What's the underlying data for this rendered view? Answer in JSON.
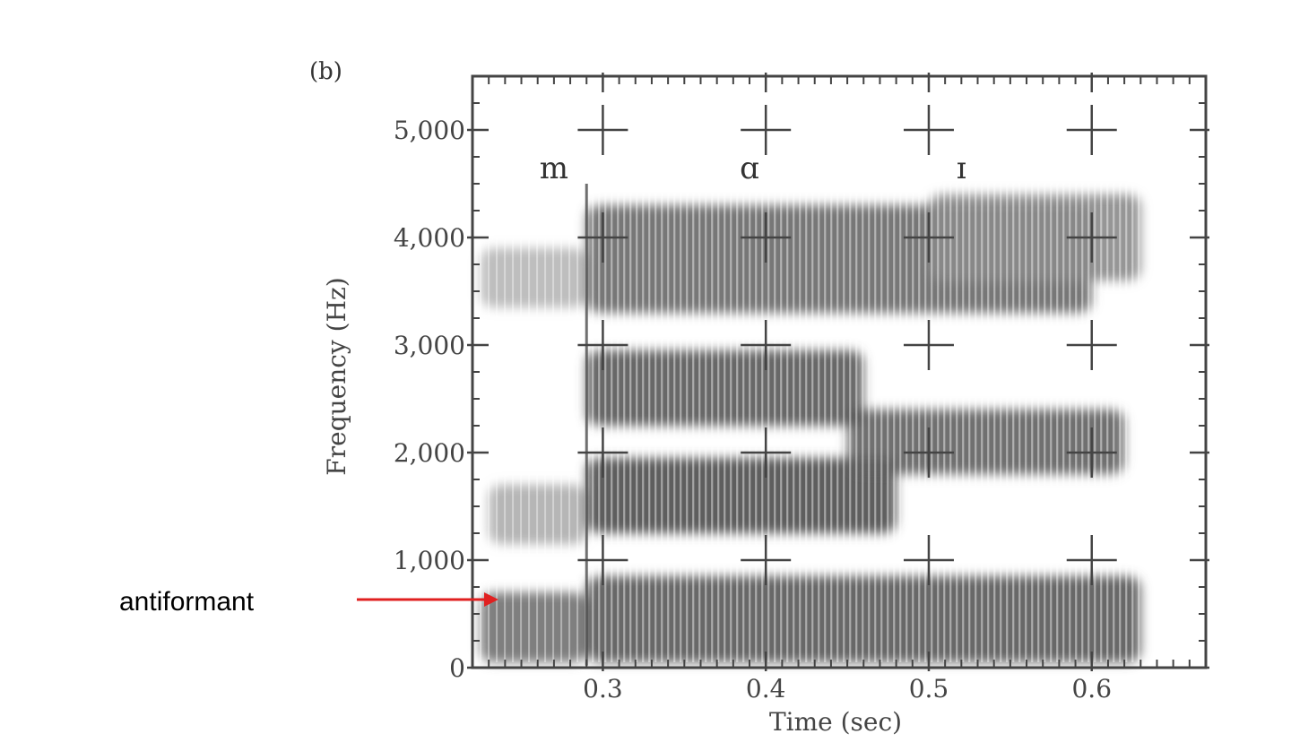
{
  "chart_data": {
    "type": "heatmap",
    "panel_label": "(b)",
    "xlabel": "Time (sec)",
    "ylabel": "Frequency (Hz)",
    "xlim": [
      0.22,
      0.67
    ],
    "ylim": [
      0,
      5500
    ],
    "xticks": [
      {
        "value": 0.3,
        "label": "0.3"
      },
      {
        "value": 0.4,
        "label": "0.4"
      },
      {
        "value": 0.5,
        "label": "0.5"
      },
      {
        "value": 0.6,
        "label": "0.6"
      }
    ],
    "yticks": [
      {
        "value": 0,
        "label": "0"
      },
      {
        "value": 1000,
        "label": "1,000"
      },
      {
        "value": 2000,
        "label": "2,000"
      },
      {
        "value": 3000,
        "label": "3,000"
      },
      {
        "value": 4000,
        "label": "4,000"
      },
      {
        "value": 5000,
        "label": "5,000"
      }
    ],
    "segments": [
      {
        "label": "m",
        "time": 0.27,
        "freq": 4550
      },
      {
        "label": "ɑ",
        "time": 0.39,
        "freq": 4550
      },
      {
        "label": "ɪ",
        "time": 0.52,
        "freq": 4550
      }
    ],
    "crosshair_grid": {
      "times": [
        0.3,
        0.4,
        0.5,
        0.6
      ],
      "freqs": [
        1000,
        2000,
        3000,
        4000,
        5000
      ]
    },
    "energy_bands": [
      {
        "t0": 0.225,
        "t1": 0.29,
        "f0": 50,
        "f1": 700,
        "intensity": 0.7
      },
      {
        "t0": 0.23,
        "t1": 0.29,
        "f0": 1150,
        "f1": 1700,
        "intensity": 0.35
      },
      {
        "t0": 0.225,
        "t1": 0.29,
        "f0": 3350,
        "f1": 3900,
        "intensity": 0.3
      },
      {
        "t0": 0.29,
        "t1": 0.63,
        "f0": 50,
        "f1": 850,
        "intensity": 0.85
      },
      {
        "t0": 0.29,
        "t1": 0.48,
        "f0": 1250,
        "f1": 1950,
        "intensity": 0.9
      },
      {
        "t0": 0.45,
        "t1": 0.62,
        "f0": 1800,
        "f1": 2400,
        "intensity": 0.8
      },
      {
        "t0": 0.29,
        "t1": 0.46,
        "f0": 2250,
        "f1": 2950,
        "intensity": 0.85
      },
      {
        "t0": 0.29,
        "t1": 0.6,
        "f0": 3300,
        "f1": 4300,
        "intensity": 0.75
      },
      {
        "t0": 0.5,
        "t1": 0.63,
        "f0": 3600,
        "f1": 4400,
        "intensity": 0.55
      }
    ],
    "annotation": {
      "text": "antiformant",
      "points_to_freq": 600,
      "points_to_time": 0.235,
      "color": "#e02020"
    }
  }
}
